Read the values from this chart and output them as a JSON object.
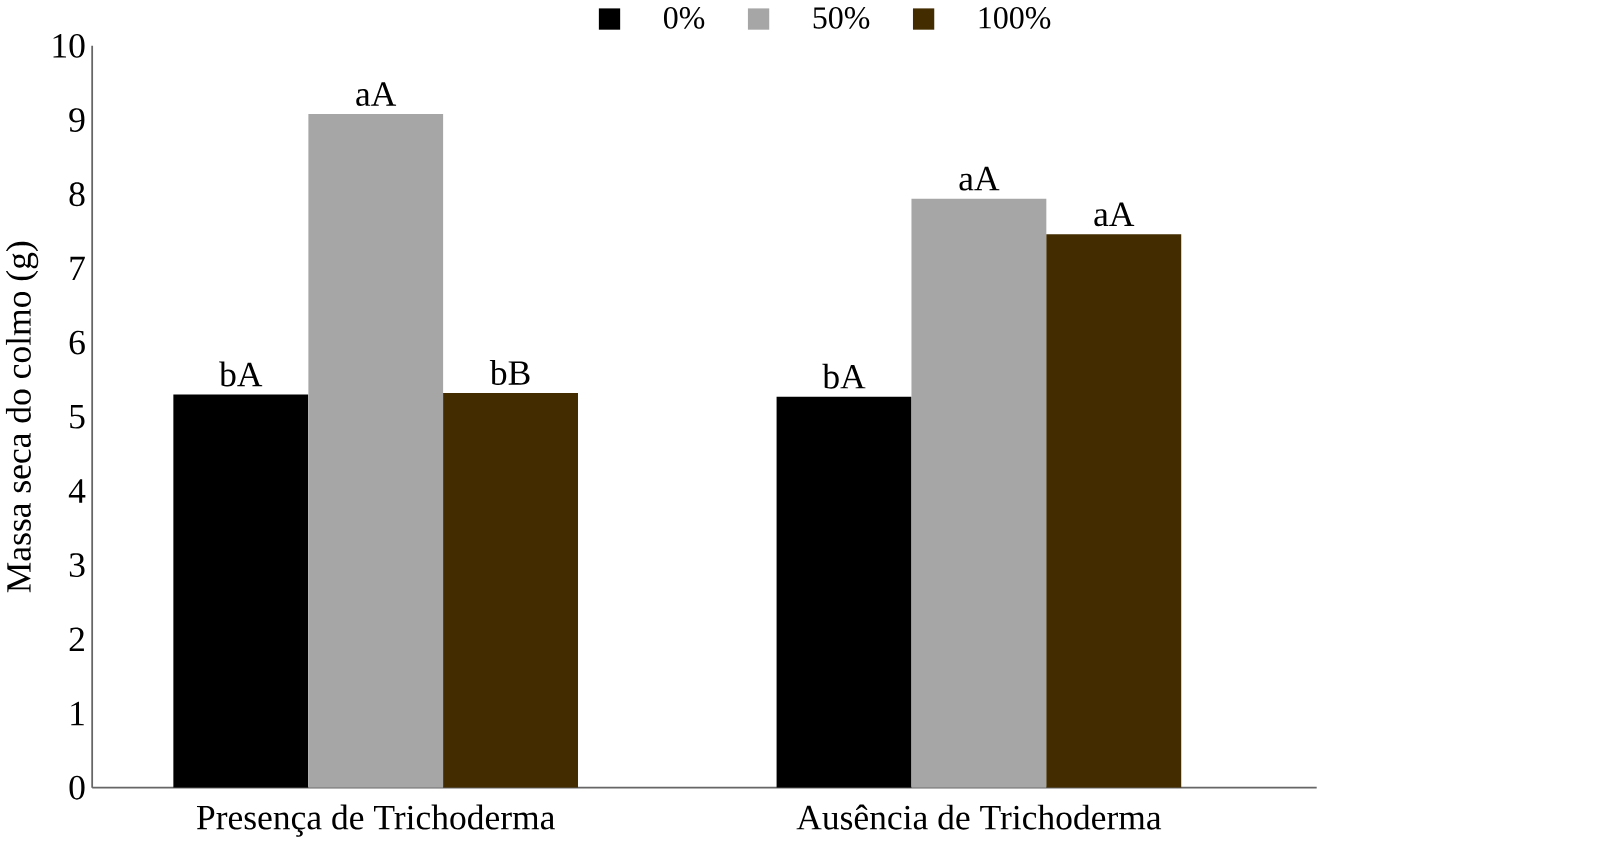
{
  "chart_data": {
    "type": "bar",
    "ylabel": "Massa seca do colmo (g)",
    "categories": [
      "Presença de Trichoderma",
      "Ausência de Trichoderma"
    ],
    "series": [
      {
        "name": "0%",
        "color": "#000000",
        "values": [
          5.3,
          5.27
        ],
        "value_labels": [
          "bA",
          "bA"
        ]
      },
      {
        "name": "50%",
        "color": "#a6a6a6",
        "values": [
          9.08,
          7.94
        ],
        "value_labels": [
          "aA",
          "aA"
        ]
      },
      {
        "name": "100%",
        "color": "#422c00",
        "values": [
          5.32,
          7.46
        ],
        "value_labels": [
          "bB",
          "aA"
        ]
      }
    ],
    "ylim": [
      0,
      10
    ],
    "yticks": [
      0,
      1,
      2,
      3,
      4,
      5,
      6,
      7,
      8,
      9,
      10
    ],
    "legend": "top"
  }
}
